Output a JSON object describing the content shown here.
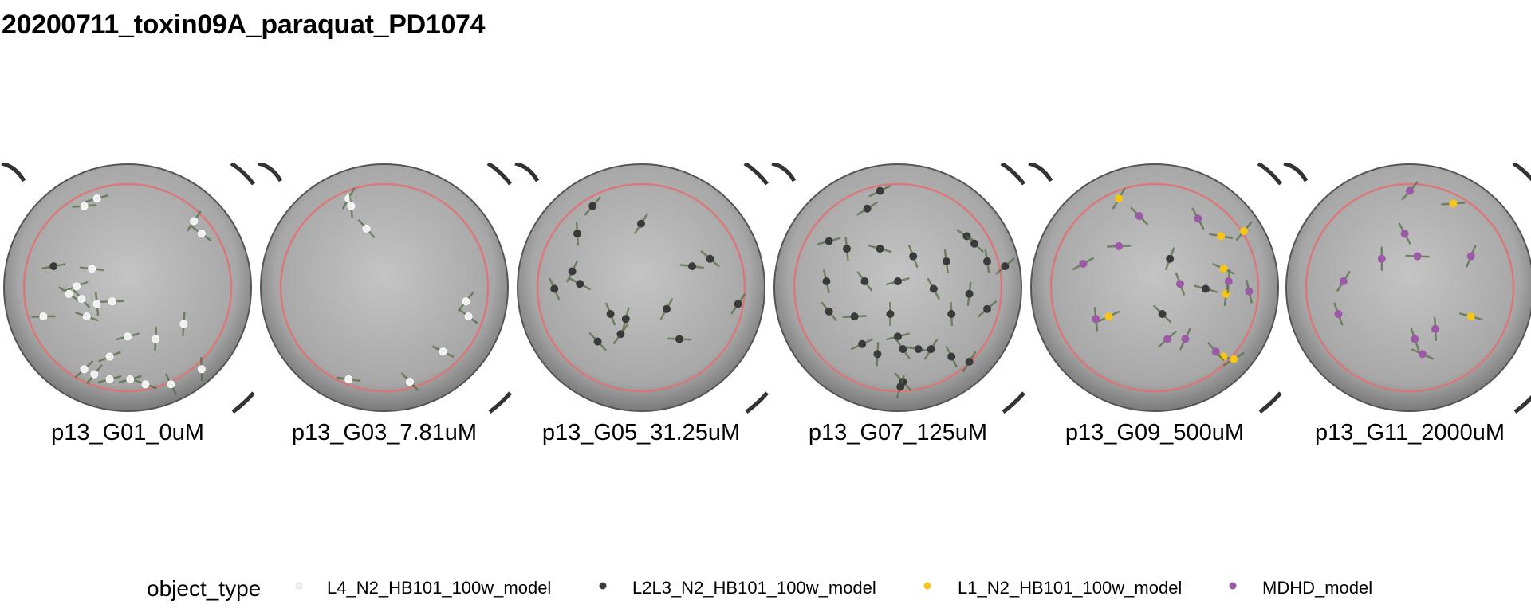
{
  "title": "20200711_toxin09A_paraquat_PD1074",
  "panels": [
    {
      "label": "p13_G01_0uM",
      "points": [
        {
          "type": 0,
          "x": 0.33,
          "y": 0.17
        },
        {
          "type": 0,
          "x": 0.38,
          "y": 0.14
        },
        {
          "type": 0,
          "x": 0.76,
          "y": 0.23
        },
        {
          "type": 0,
          "x": 0.79,
          "y": 0.28
        },
        {
          "type": 0,
          "x": 0.36,
          "y": 0.42
        },
        {
          "type": 0,
          "x": 0.3,
          "y": 0.49
        },
        {
          "type": 0,
          "x": 0.27,
          "y": 0.52
        },
        {
          "type": 0,
          "x": 0.32,
          "y": 0.54
        },
        {
          "type": 0,
          "x": 0.38,
          "y": 0.56
        },
        {
          "type": 0,
          "x": 0.44,
          "y": 0.55
        },
        {
          "type": 0,
          "x": 0.34,
          "y": 0.61
        },
        {
          "type": 0,
          "x": 0.17,
          "y": 0.61
        },
        {
          "type": 0,
          "x": 0.72,
          "y": 0.64
        },
        {
          "type": 0,
          "x": 0.5,
          "y": 0.69
        },
        {
          "type": 0,
          "x": 0.61,
          "y": 0.7
        },
        {
          "type": 0,
          "x": 0.43,
          "y": 0.77
        },
        {
          "type": 0,
          "x": 0.33,
          "y": 0.82
        },
        {
          "type": 0,
          "x": 0.79,
          "y": 0.82
        },
        {
          "type": 0,
          "x": 0.43,
          "y": 0.86
        },
        {
          "type": 0,
          "x": 0.51,
          "y": 0.86
        },
        {
          "type": 0,
          "x": 0.37,
          "y": 0.84
        },
        {
          "type": 0,
          "x": 0.57,
          "y": 0.88
        },
        {
          "type": 0,
          "x": 0.67,
          "y": 0.88
        },
        {
          "type": 1,
          "x": 0.21,
          "y": 0.41
        }
      ]
    },
    {
      "label": "p13_G03_7.81uM",
      "points": [
        {
          "type": 0,
          "x": 0.36,
          "y": 0.14
        },
        {
          "type": 0,
          "x": 0.37,
          "y": 0.17
        },
        {
          "type": 0,
          "x": 0.43,
          "y": 0.26
        },
        {
          "type": 0,
          "x": 0.82,
          "y": 0.55
        },
        {
          "type": 0,
          "x": 0.83,
          "y": 0.61
        },
        {
          "type": 0,
          "x": 0.73,
          "y": 0.75
        },
        {
          "type": 0,
          "x": 0.36,
          "y": 0.86
        },
        {
          "type": 0,
          "x": 0.6,
          "y": 0.87
        }
      ]
    },
    {
      "label": "p13_G05_31.25uM",
      "points": [
        {
          "type": 1,
          "x": 0.31,
          "y": 0.17
        },
        {
          "type": 1,
          "x": 0.5,
          "y": 0.24
        },
        {
          "type": 1,
          "x": 0.25,
          "y": 0.28
        },
        {
          "type": 1,
          "x": 0.77,
          "y": 0.38
        },
        {
          "type": 1,
          "x": 0.7,
          "y": 0.41
        },
        {
          "type": 1,
          "x": 0.23,
          "y": 0.43
        },
        {
          "type": 1,
          "x": 0.26,
          "y": 0.48
        },
        {
          "type": 1,
          "x": 0.16,
          "y": 0.5
        },
        {
          "type": 1,
          "x": 0.6,
          "y": 0.58
        },
        {
          "type": 1,
          "x": 0.88,
          "y": 0.56
        },
        {
          "type": 1,
          "x": 0.38,
          "y": 0.6
        },
        {
          "type": 1,
          "x": 0.44,
          "y": 0.62
        },
        {
          "type": 1,
          "x": 0.42,
          "y": 0.68
        },
        {
          "type": 1,
          "x": 0.33,
          "y": 0.71
        },
        {
          "type": 1,
          "x": 0.65,
          "y": 0.7
        }
      ]
    },
    {
      "label": "p13_G07_125uM",
      "points": [
        {
          "type": 1,
          "x": 0.43,
          "y": 0.11
        },
        {
          "type": 1,
          "x": 0.38,
          "y": 0.18
        },
        {
          "type": 1,
          "x": 0.23,
          "y": 0.31
        },
        {
          "type": 1,
          "x": 0.77,
          "y": 0.29
        },
        {
          "type": 1,
          "x": 0.8,
          "y": 0.32
        },
        {
          "type": 1,
          "x": 0.3,
          "y": 0.34
        },
        {
          "type": 1,
          "x": 0.43,
          "y": 0.34
        },
        {
          "type": 1,
          "x": 0.56,
          "y": 0.37
        },
        {
          "type": 1,
          "x": 0.69,
          "y": 0.39
        },
        {
          "type": 1,
          "x": 0.85,
          "y": 0.39
        },
        {
          "type": 1,
          "x": 0.92,
          "y": 0.41
        },
        {
          "type": 1,
          "x": 0.22,
          "y": 0.47
        },
        {
          "type": 1,
          "x": 0.37,
          "y": 0.47
        },
        {
          "type": 1,
          "x": 0.5,
          "y": 0.47
        },
        {
          "type": 1,
          "x": 0.64,
          "y": 0.5
        },
        {
          "type": 1,
          "x": 0.78,
          "y": 0.52
        },
        {
          "type": 1,
          "x": 0.23,
          "y": 0.59
        },
        {
          "type": 1,
          "x": 0.33,
          "y": 0.61
        },
        {
          "type": 1,
          "x": 0.47,
          "y": 0.6
        },
        {
          "type": 1,
          "x": 0.71,
          "y": 0.6
        },
        {
          "type": 1,
          "x": 0.85,
          "y": 0.58
        },
        {
          "type": 1,
          "x": 0.5,
          "y": 0.69
        },
        {
          "type": 1,
          "x": 0.52,
          "y": 0.74
        },
        {
          "type": 1,
          "x": 0.58,
          "y": 0.74
        },
        {
          "type": 1,
          "x": 0.63,
          "y": 0.74
        },
        {
          "type": 1,
          "x": 0.71,
          "y": 0.77
        },
        {
          "type": 1,
          "x": 0.78,
          "y": 0.79
        },
        {
          "type": 1,
          "x": 0.36,
          "y": 0.72
        },
        {
          "type": 1,
          "x": 0.42,
          "y": 0.76
        },
        {
          "type": 1,
          "x": 0.52,
          "y": 0.87
        },
        {
          "type": 1,
          "x": 0.51,
          "y": 0.89
        }
      ]
    },
    {
      "label": "p13_G09_500uM",
      "points": [
        {
          "type": 2,
          "x": 0.36,
          "y": 0.14
        },
        {
          "type": 2,
          "x": 0.85,
          "y": 0.27
        },
        {
          "type": 2,
          "x": 0.77,
          "y": 0.42
        },
        {
          "type": 2,
          "x": 0.76,
          "y": 0.29
        },
        {
          "type": 2,
          "x": 0.78,
          "y": 0.52
        },
        {
          "type": 2,
          "x": 0.32,
          "y": 0.61
        },
        {
          "type": 2,
          "x": 0.77,
          "y": 0.77
        },
        {
          "type": 2,
          "x": 0.81,
          "y": 0.78
        },
        {
          "type": 3,
          "x": 0.44,
          "y": 0.21
        },
        {
          "type": 3,
          "x": 0.67,
          "y": 0.22
        },
        {
          "type": 3,
          "x": 0.36,
          "y": 0.33
        },
        {
          "type": 3,
          "x": 0.22,
          "y": 0.4
        },
        {
          "type": 3,
          "x": 0.6,
          "y": 0.48
        },
        {
          "type": 3,
          "x": 0.79,
          "y": 0.47
        },
        {
          "type": 3,
          "x": 0.87,
          "y": 0.51
        },
        {
          "type": 3,
          "x": 0.27,
          "y": 0.62
        },
        {
          "type": 3,
          "x": 0.55,
          "y": 0.7
        },
        {
          "type": 3,
          "x": 0.62,
          "y": 0.7
        },
        {
          "type": 3,
          "x": 0.74,
          "y": 0.75
        },
        {
          "type": 1,
          "x": 0.56,
          "y": 0.38
        },
        {
          "type": 1,
          "x": 0.53,
          "y": 0.6
        },
        {
          "type": 1,
          "x": 0.7,
          "y": 0.5
        }
      ]
    },
    {
      "label": "p13_G11_2000uM",
      "points": [
        {
          "type": 3,
          "x": 0.5,
          "y": 0.11
        },
        {
          "type": 2,
          "x": 0.67,
          "y": 0.16
        },
        {
          "type": 3,
          "x": 0.48,
          "y": 0.28
        },
        {
          "type": 3,
          "x": 0.39,
          "y": 0.38
        },
        {
          "type": 3,
          "x": 0.53,
          "y": 0.37
        },
        {
          "type": 3,
          "x": 0.74,
          "y": 0.37
        },
        {
          "type": 3,
          "x": 0.24,
          "y": 0.47
        },
        {
          "type": 2,
          "x": 0.74,
          "y": 0.61
        },
        {
          "type": 3,
          "x": 0.22,
          "y": 0.6
        },
        {
          "type": 3,
          "x": 0.6,
          "y": 0.66
        },
        {
          "type": 3,
          "x": 0.52,
          "y": 0.7
        },
        {
          "type": 3,
          "x": 0.55,
          "y": 0.76
        }
      ]
    }
  ],
  "legend": {
    "title": "object_type",
    "entries": [
      {
        "label": "L4_N2_HB101_100w_model",
        "color": "#f0f0f0"
      },
      {
        "label": "L2L3_N2_HB101_100w_model",
        "color": "#3a3a3a"
      },
      {
        "label": "L1_N2_HB101_100w_model",
        "color": "#f5c518"
      },
      {
        "label": "MDHD_model",
        "color": "#9b59a6"
      }
    ]
  },
  "colors": {
    "ring": "#e07070",
    "well": "#a8a8a8"
  }
}
